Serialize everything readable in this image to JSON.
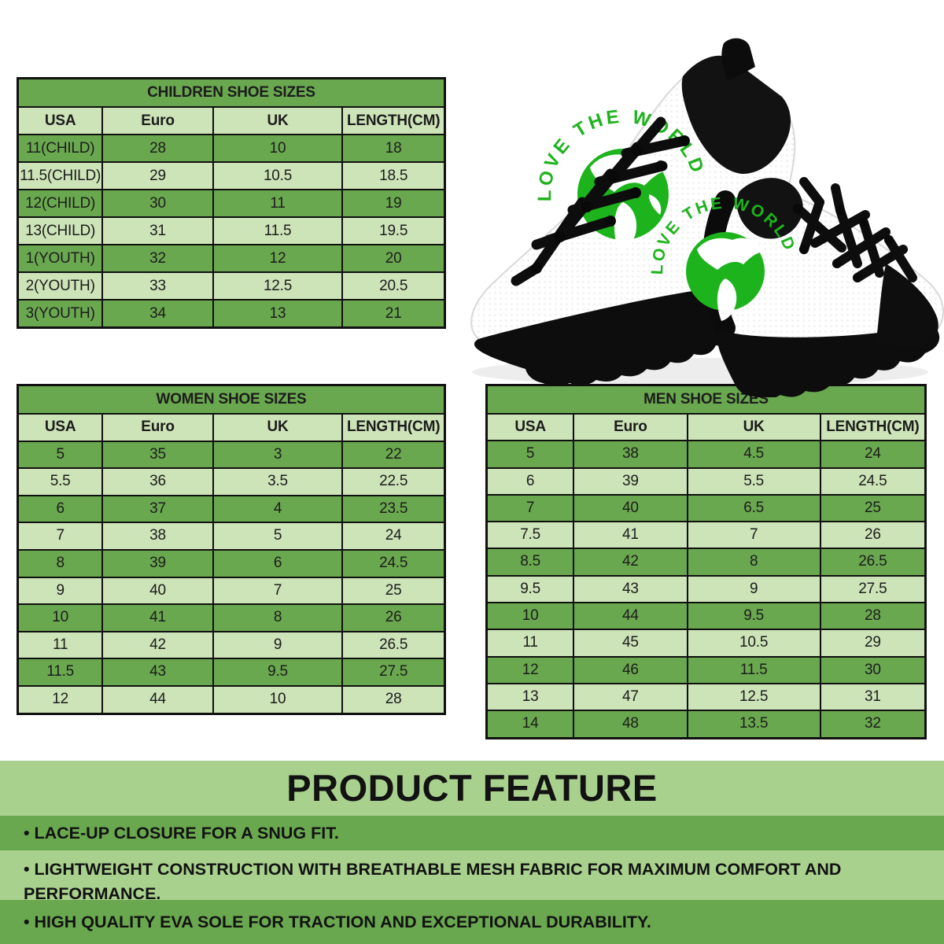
{
  "colors": {
    "table_dark_green": "#6aa84f",
    "table_light_green": "#cde3b8",
    "feature_light_green": "#a9d18e",
    "feature_dark_green": "#6aa84f",
    "border_black": "#101010",
    "logo_green": "#1db31d"
  },
  "tables": {
    "children": {
      "title": "CHILDREN SHOE SIZES",
      "columns": [
        "USA",
        "Euro",
        "UK",
        "LENGTH(CM)"
      ],
      "rows": [
        [
          "11(CHILD)",
          "28",
          "10",
          "18"
        ],
        [
          "11.5(CHILD)",
          "29",
          "10.5",
          "18.5"
        ],
        [
          "12(CHILD)",
          "30",
          "11",
          "19"
        ],
        [
          "13(CHILD)",
          "31",
          "11.5",
          "19.5"
        ],
        [
          "1(YOUTH)",
          "32",
          "12",
          "20"
        ],
        [
          "2(YOUTH)",
          "33",
          "12.5",
          "20.5"
        ],
        [
          "3(YOUTH)",
          "34",
          "13",
          "21"
        ]
      ]
    },
    "women": {
      "title": "WOMEN SHOE SIZES",
      "columns": [
        "USA",
        "Euro",
        "UK",
        "LENGTH(CM)"
      ],
      "rows": [
        [
          "5",
          "35",
          "3",
          "22"
        ],
        [
          "5.5",
          "36",
          "3.5",
          "22.5"
        ],
        [
          "6",
          "37",
          "4",
          "23.5"
        ],
        [
          "7",
          "38",
          "5",
          "24"
        ],
        [
          "8",
          "39",
          "6",
          "24.5"
        ],
        [
          "9",
          "40",
          "7",
          "25"
        ],
        [
          "10",
          "41",
          "8",
          "26"
        ],
        [
          "11",
          "42",
          "9",
          "26.5"
        ],
        [
          "11.5",
          "43",
          "9.5",
          "27.5"
        ],
        [
          "12",
          "44",
          "10",
          "28"
        ]
      ]
    },
    "men": {
      "title": "MEN SHOE SIZES",
      "columns": [
        "USA",
        "Euro",
        "UK",
        "LENGTH(CM)"
      ],
      "rows": [
        [
          "5",
          "38",
          "4.5",
          "24"
        ],
        [
          "6",
          "39",
          "5.5",
          "24.5"
        ],
        [
          "7",
          "40",
          "6.5",
          "25"
        ],
        [
          "7.5",
          "41",
          "7",
          "26"
        ],
        [
          "8.5",
          "42",
          "8",
          "26.5"
        ],
        [
          "9.5",
          "43",
          "9",
          "27.5"
        ],
        [
          "10",
          "44",
          "9.5",
          "28"
        ],
        [
          "11",
          "45",
          "10.5",
          "29"
        ],
        [
          "12",
          "46",
          "11.5",
          "30"
        ],
        [
          "13",
          "47",
          "12.5",
          "31"
        ],
        [
          "14",
          "48",
          "13.5",
          "32"
        ]
      ]
    }
  },
  "product_feature": {
    "title": "PRODUCT FEATURE",
    "bullets": [
      "• LACE-UP CLOSURE FOR A SNUG FIT.",
      "• LIGHTWEIGHT CONSTRUCTION WITH BREATHABLE MESH FABRIC FOR MAXIMUM COMFORT AND PERFORMANCE.",
      "• HIGH QUALITY EVA SOLE FOR TRACTION AND EXCEPTIONAL DURABILITY."
    ]
  },
  "shoe": {
    "logo_text": "LOVE THE WORLD"
  }
}
